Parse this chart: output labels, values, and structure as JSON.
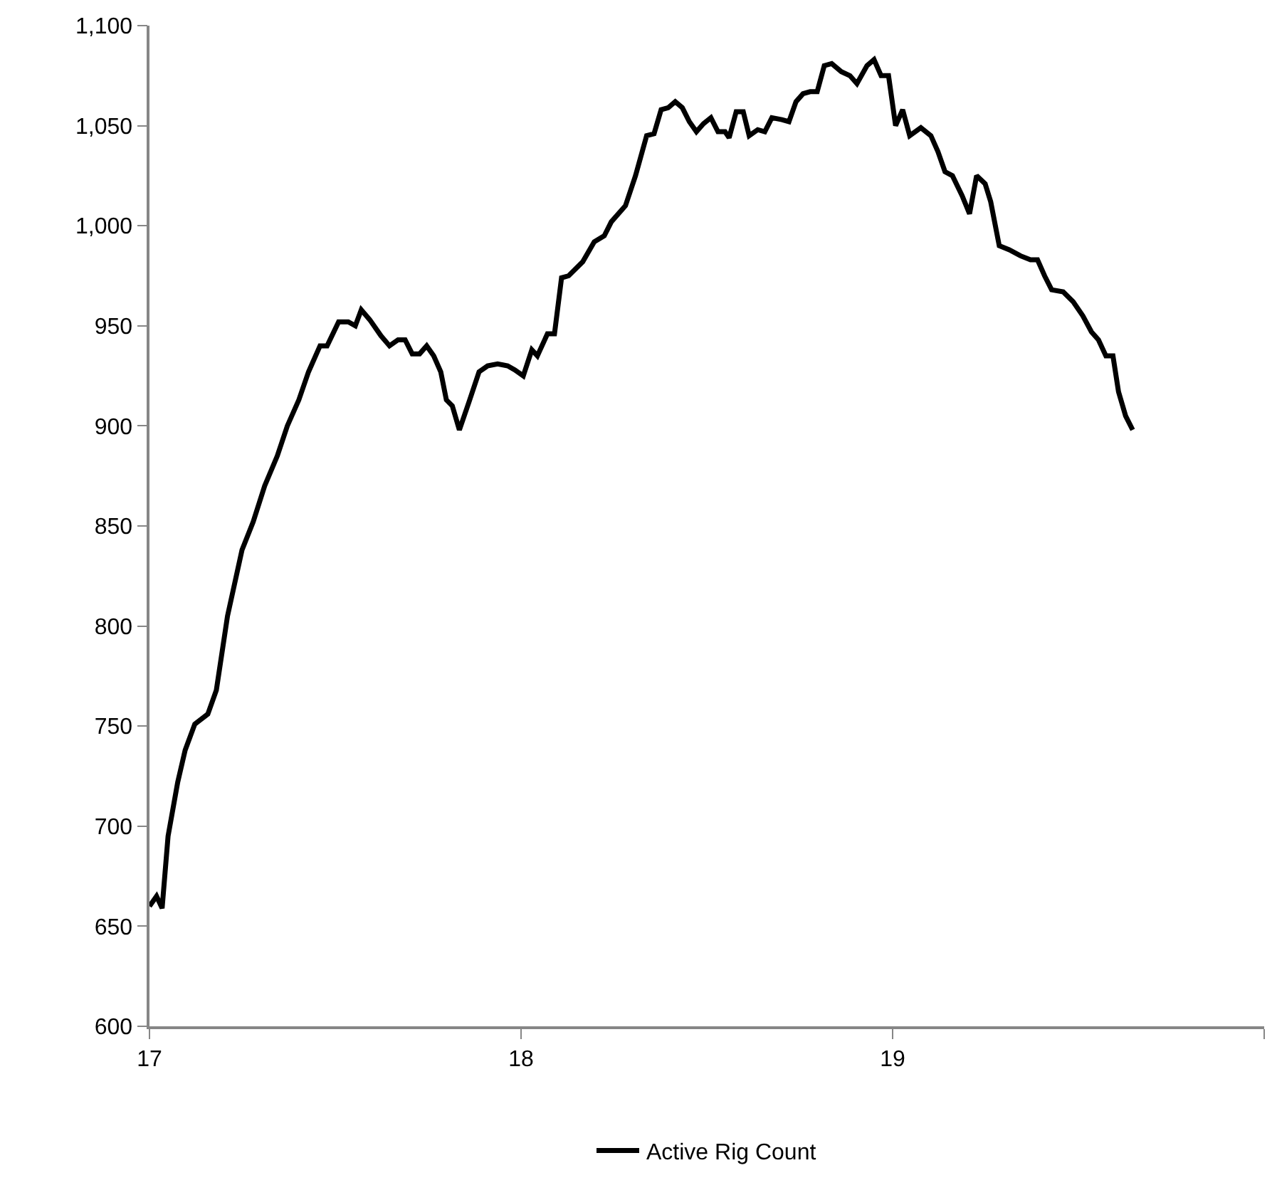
{
  "chart_data": {
    "type": "line",
    "xlim": [
      17,
      20
    ],
    "ylim": [
      600,
      1100
    ],
    "xticks": [
      17,
      18,
      19,
      {
        "value": 20,
        "label": null
      }
    ],
    "yticks": [
      {
        "value": 600,
        "label": "600"
      },
      {
        "value": 650,
        "label": "650"
      },
      {
        "value": 700,
        "label": "700"
      },
      {
        "value": 750,
        "label": "750"
      },
      {
        "value": 800,
        "label": "800"
      },
      {
        "value": 850,
        "label": "850"
      },
      {
        "value": 900,
        "label": "900"
      },
      {
        "value": 950,
        "label": "950"
      },
      {
        "value": 1000,
        "label": "1,000"
      },
      {
        "value": 1050,
        "label": "1,050"
      },
      {
        "value": 1100,
        "label": "1,100"
      }
    ],
    "grid": false,
    "legend": "bottom",
    "marker": "none",
    "line_style": "solid",
    "x": [
      17.0,
      17.019,
      17.034,
      17.05,
      17.076,
      17.096,
      17.122,
      17.157,
      17.18,
      17.21,
      17.249,
      17.279,
      17.31,
      17.344,
      17.371,
      17.402,
      17.428,
      17.459,
      17.478,
      17.509,
      17.535,
      17.554,
      17.57,
      17.593,
      17.623,
      17.646,
      17.669,
      17.688,
      17.707,
      17.727,
      17.746,
      17.765,
      17.784,
      17.799,
      17.815,
      17.834,
      17.86,
      17.887,
      17.91,
      17.937,
      17.964,
      17.983,
      18.006,
      18.029,
      18.044,
      18.071,
      18.09,
      18.109,
      18.128,
      18.166,
      18.197,
      18.224,
      18.243,
      18.281,
      18.308,
      18.338,
      18.358,
      18.377,
      18.396,
      18.415,
      18.434,
      18.453,
      18.472,
      18.491,
      18.511,
      18.53,
      18.549,
      18.56,
      18.579,
      18.598,
      18.614,
      18.637,
      18.656,
      18.675,
      18.702,
      18.721,
      18.74,
      18.759,
      18.778,
      18.797,
      18.816,
      18.836,
      18.862,
      18.885,
      18.904,
      18.931,
      18.95,
      18.969,
      18.989,
      19.008,
      19.027,
      19.046,
      19.076,
      19.103,
      19.122,
      19.141,
      19.161,
      19.187,
      19.207,
      19.226,
      19.249,
      19.264,
      19.287,
      19.314,
      19.344,
      19.371,
      19.39,
      19.409,
      19.428,
      19.459,
      19.486,
      19.512,
      19.535,
      19.554,
      19.574,
      19.593,
      19.608,
      19.627,
      19.646
    ],
    "series": [
      {
        "name": "Active Rig Count",
        "color": "#000000",
        "values": [
          660,
          665,
          659,
          695,
          722,
          738,
          751,
          756,
          768,
          805,
          838,
          852,
          870,
          885,
          900,
          913,
          927,
          940,
          940,
          952,
          952,
          950,
          958,
          953,
          945,
          940,
          943,
          943,
          936,
          936,
          940,
          935,
          927,
          913,
          910,
          898,
          912,
          927,
          930,
          931,
          930,
          928,
          925,
          938,
          935,
          946,
          946,
          974,
          975,
          982,
          992,
          995,
          1002,
          1010,
          1025,
          1045,
          1046,
          1058,
          1059,
          1062,
          1059,
          1052,
          1047,
          1051,
          1054,
          1047,
          1047,
          1044,
          1057,
          1057,
          1045,
          1048,
          1047,
          1054,
          1053,
          1052,
          1062,
          1066,
          1067,
          1067,
          1080,
          1081,
          1077,
          1075,
          1071,
          1080,
          1083,
          1075,
          1075,
          1050,
          1058,
          1045,
          1049,
          1045,
          1037,
          1027,
          1025,
          1015,
          1006,
          1025,
          1021,
          1012,
          990,
          988,
          985,
          983,
          983,
          975,
          968,
          967,
          962,
          955,
          947,
          943,
          935,
          935,
          917,
          905,
          898
        ]
      }
    ]
  }
}
